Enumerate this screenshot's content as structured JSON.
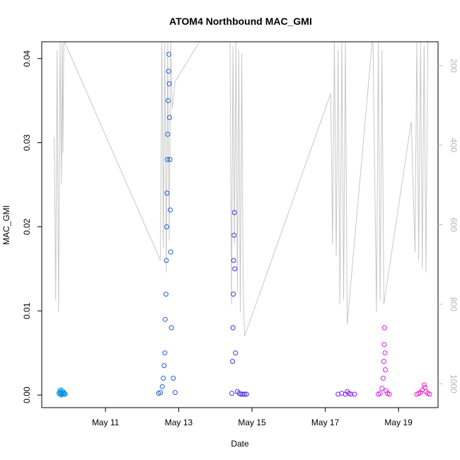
{
  "chart_data": {
    "type": "scatter",
    "title": "ATOM4 Northbound MAC_GMI",
    "xlabel": "Date",
    "ylabel": "MAC_GMI",
    "x_ticks": [
      "May 11",
      "May 13",
      "May 15",
      "May 17",
      "May 19"
    ],
    "x_tick_days": [
      11,
      13,
      15,
      17,
      19
    ],
    "xlim_days": [
      9.26,
      10.08
    ],
    "xlim": [
      9.26,
      20.08
    ],
    "ylim": [
      -0.0015,
      0.042
    ],
    "y_ticks": [
      0.0,
      0.01,
      0.02,
      0.03,
      0.04
    ],
    "y_tick_labels": [
      "0.00",
      "0.01",
      "0.02",
      "0.03",
      "0.04"
    ],
    "right_axis": {
      "ticks": [
        200,
        400,
        600,
        800,
        1000
      ],
      "ylim_reversed": [
        1060,
        140
      ],
      "color": "#b5b5b5"
    },
    "grid": false,
    "legend": "none",
    "series": [
      {
        "color": "#0090e0",
        "x": [
          9.73,
          9.75,
          9.77,
          9.78,
          9.8,
          9.82,
          9.84,
          9.86,
          9.88,
          9.9,
          9.76,
          9.8,
          9.84
        ],
        "y": [
          0.0002,
          0.0004,
          0.0006,
          0.0003,
          0.0002,
          0.0005,
          0.0001,
          0.0003,
          0.0002,
          0.0001,
          0.0001,
          0.0,
          0.0001
        ]
      },
      {
        "color": "#1f5ae6",
        "x": [
          12.45,
          12.5,
          12.55,
          12.58,
          12.6,
          12.62,
          12.63,
          12.65,
          12.66,
          12.67,
          12.68,
          12.69,
          12.7,
          12.71,
          12.72,
          12.73,
          12.74,
          12.75,
          12.76,
          12.77,
          12.78,
          12.8,
          12.85,
          12.9
        ],
        "y": [
          0.0002,
          0.0003,
          0.001,
          0.002,
          0.0035,
          0.005,
          0.009,
          0.012,
          0.016,
          0.02,
          0.024,
          0.028,
          0.031,
          0.035,
          0.0385,
          0.0405,
          0.037,
          0.033,
          0.028,
          0.022,
          0.017,
          0.008,
          0.002,
          0.0003
        ]
      },
      {
        "color": "#3c2fe8",
        "x": [
          14.45,
          14.47,
          14.48,
          14.49,
          14.5,
          14.51,
          14.52,
          14.53,
          14.55,
          14.6,
          14.65,
          14.7,
          14.75,
          14.8,
          14.85
        ],
        "y": [
          0.0002,
          0.004,
          0.008,
          0.012,
          0.016,
          0.019,
          0.0217,
          0.015,
          0.005,
          0.0004,
          0.0002,
          0.0001,
          0.0001,
          0.0001,
          0.0001
        ]
      },
      {
        "color": "#7a1ff0",
        "x": [
          17.35,
          17.45,
          17.55,
          17.6,
          17.65,
          17.7,
          17.8
        ],
        "y": [
          0.0001,
          0.0002,
          0.0001,
          0.0004,
          0.0002,
          0.0001,
          0.0001
        ]
      },
      {
        "color": "#d21ee8",
        "x": [
          18.45,
          18.5,
          18.55,
          18.58,
          18.6,
          18.61,
          18.62,
          18.63,
          18.64,
          18.66,
          18.7,
          18.75
        ],
        "y": [
          0.0001,
          0.0002,
          0.0008,
          0.002,
          0.004,
          0.006,
          0.008,
          0.005,
          0.003,
          0.0005,
          0.0002,
          0.0001
        ]
      },
      {
        "color": "#f21ec8",
        "x": [
          19.5,
          19.55,
          19.6,
          19.65,
          19.7,
          19.72,
          19.75,
          19.8,
          19.85
        ],
        "y": [
          0.0001,
          0.0002,
          0.0003,
          0.0006,
          0.0012,
          0.0009,
          0.0004,
          0.0002,
          0.0001
        ]
      }
    ],
    "gray_line": {
      "color": "#c8c8c8",
      "axis": "right",
      "x": [
        9.6,
        9.64,
        9.68,
        9.72,
        9.76,
        9.8,
        9.82,
        9.84,
        9.86,
        9.88,
        12.5,
        12.54,
        12.58,
        12.62,
        12.66,
        12.7,
        12.74,
        12.78,
        12.82,
        12.9,
        13.7,
        14.4,
        14.44,
        14.48,
        14.52,
        14.56,
        14.6,
        14.64,
        14.68,
        14.72,
        14.76,
        14.8,
        17.15,
        17.2,
        17.25,
        17.3,
        17.35,
        17.4,
        17.45,
        17.5,
        17.55,
        17.6,
        18.3,
        18.4,
        18.45,
        18.5,
        18.55,
        18.6,
        19.35,
        19.45,
        19.5,
        19.55,
        19.6,
        19.65,
        19.7,
        19.75,
        19.8
      ],
      "y": [
        380,
        790,
        160,
        820,
        140,
        500,
        140,
        420,
        150,
        140,
        690,
        140,
        660,
        140,
        720,
        140,
        640,
        140,
        310,
        240,
        120,
        140,
        800,
        150,
        650,
        140,
        770,
        160,
        820,
        170,
        780,
        880,
        270,
        650,
        140,
        680,
        160,
        800,
        140,
        790,
        140,
        850,
        120,
        820,
        140,
        790,
        160,
        800,
        340,
        670,
        140,
        690,
        140,
        710,
        150,
        720,
        140
      ]
    }
  }
}
